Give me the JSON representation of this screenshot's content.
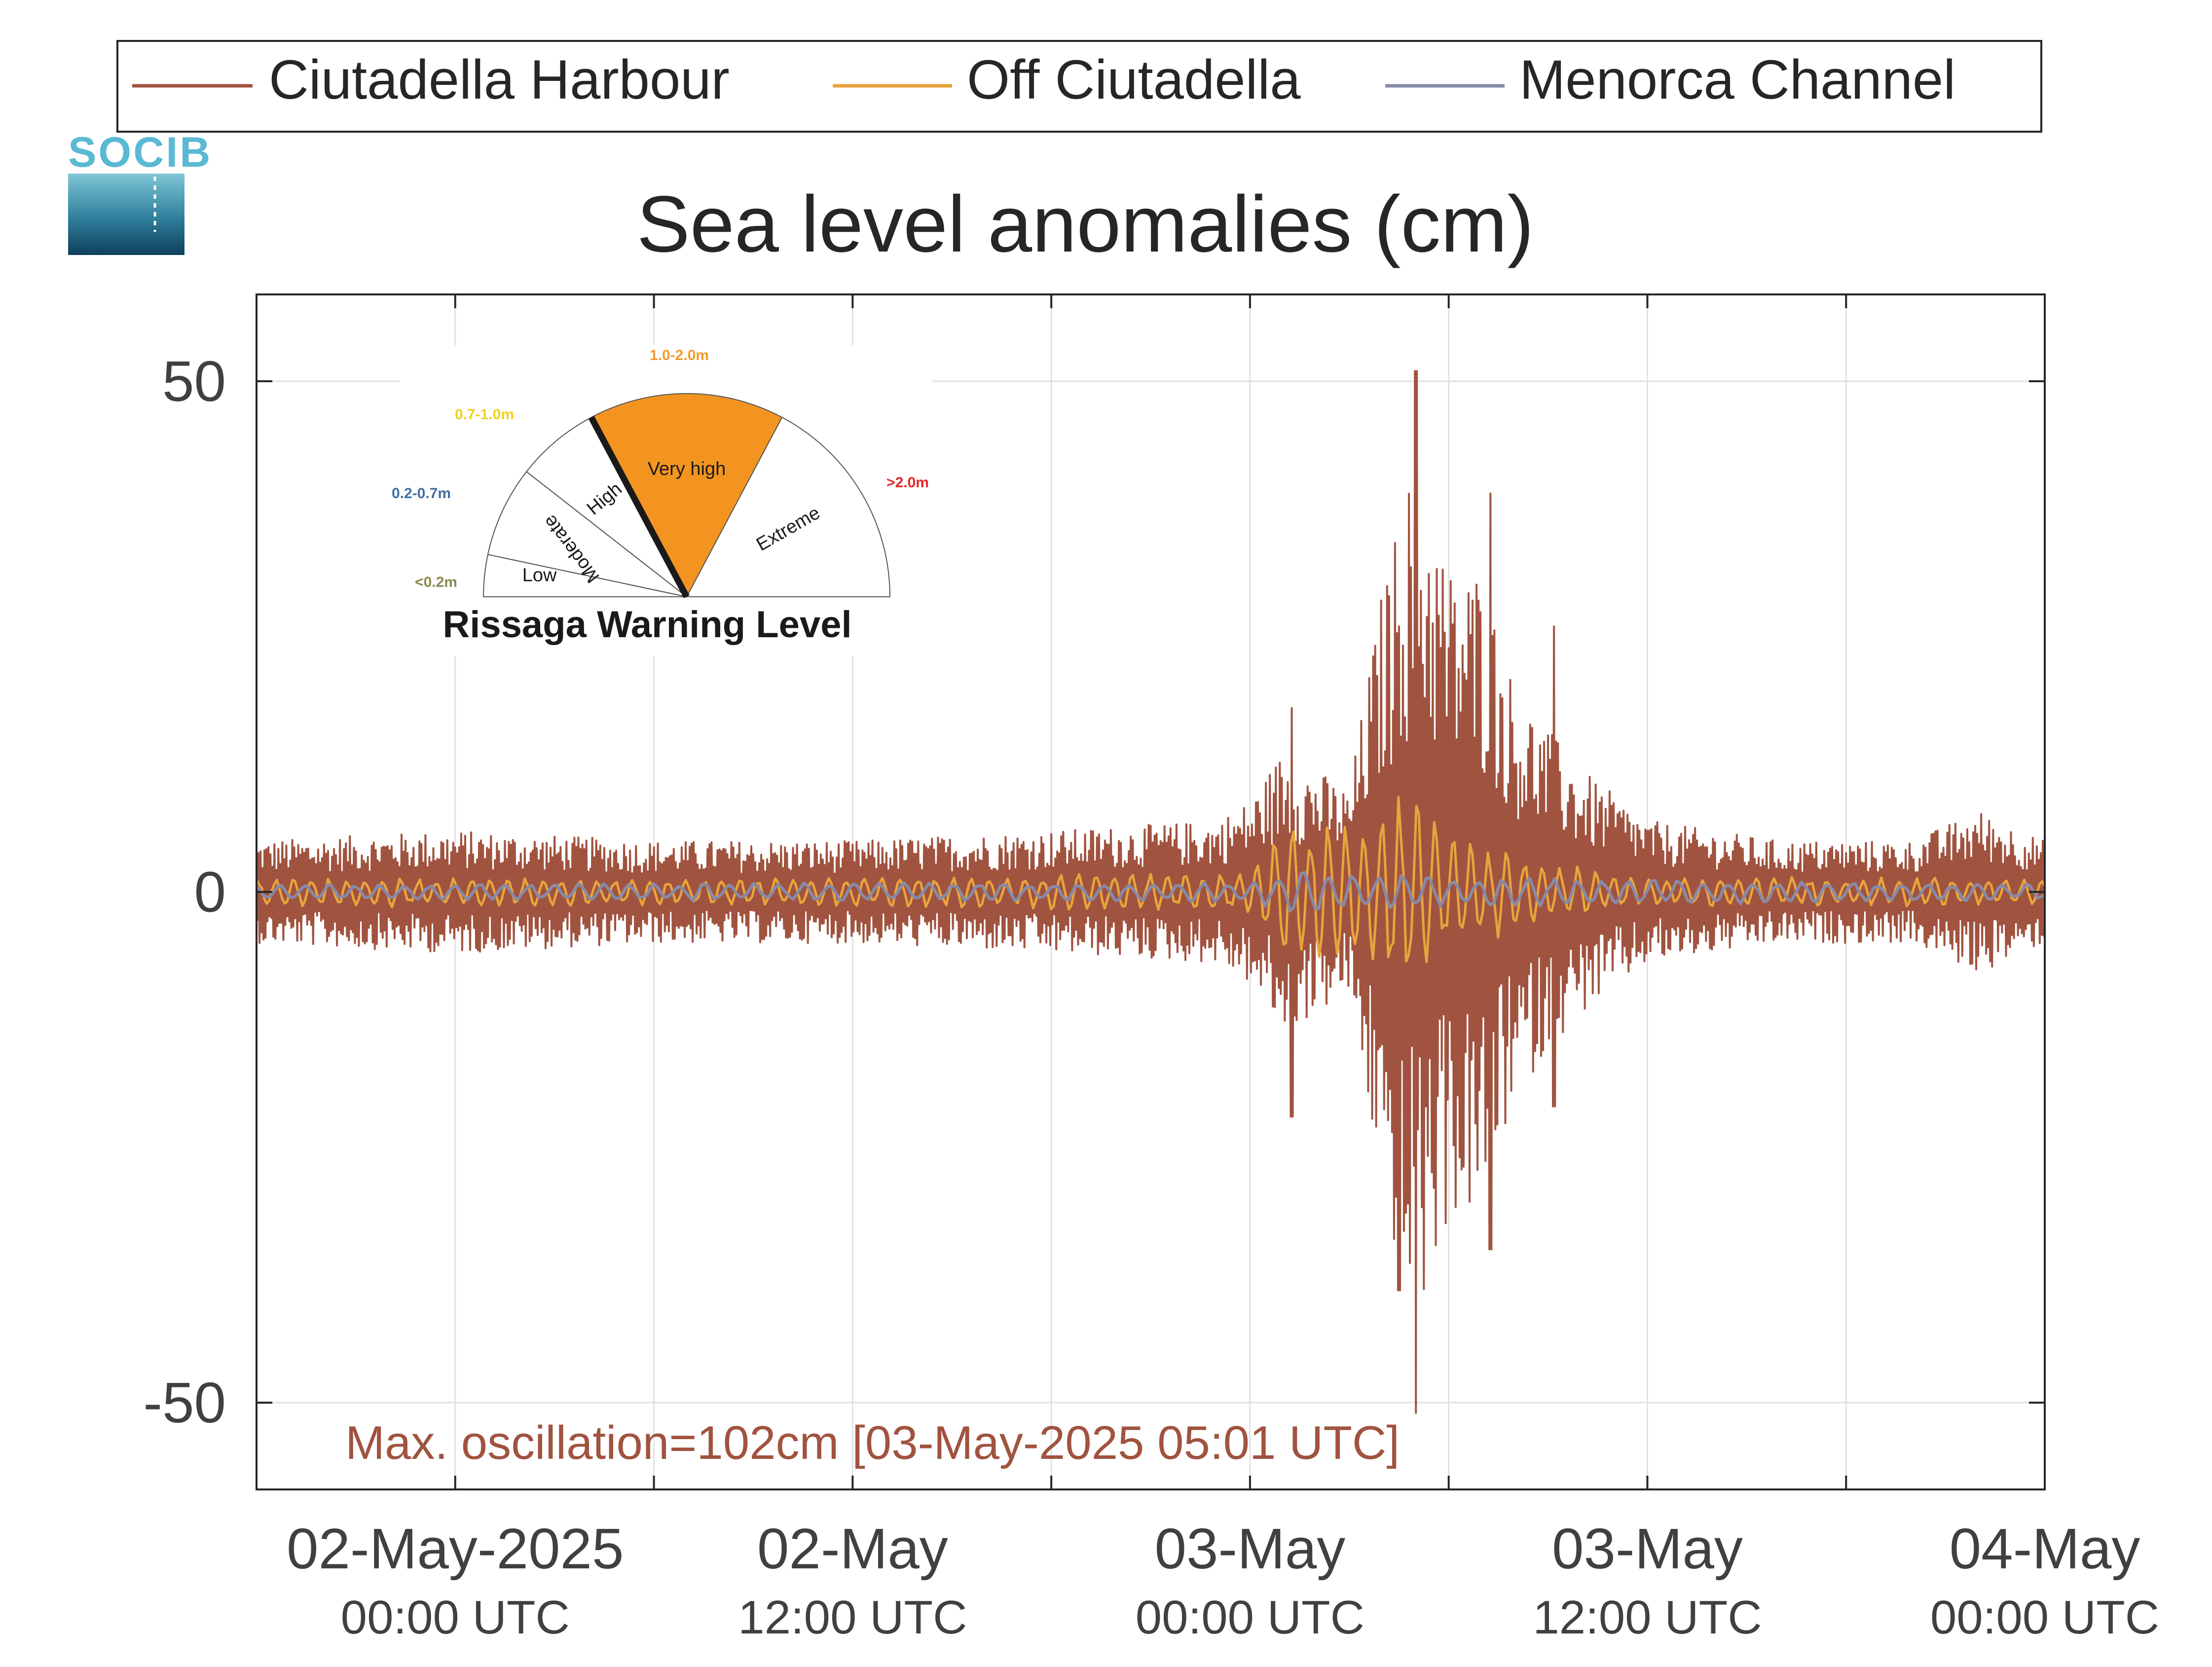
{
  "chart_data": {
    "type": "line",
    "title": "Sea level anomalies (cm)",
    "xlabel": "",
    "ylabel": "",
    "ylim": [
      -58.5,
      58.5
    ],
    "yticks": [
      -50,
      0,
      50
    ],
    "ytick_labels": [
      "-50",
      "0",
      "50"
    ],
    "xlim": [
      "2025-05-01T18:00",
      "2025-05-04T00:00"
    ],
    "xticks": [
      {
        "at": "2025-05-02T00:00",
        "line1": "02-May-2025",
        "line2": "00:00 UTC"
      },
      {
        "at": "2025-05-02T12:00",
        "line1": "02-May",
        "line2": "12:00 UTC"
      },
      {
        "at": "2025-05-03T00:00",
        "line1": "03-May",
        "line2": "00:00 UTC"
      },
      {
        "at": "2025-05-03T12:00",
        "line1": "03-May",
        "line2": "12:00 UTC"
      },
      {
        "at": "2025-05-04T00:00",
        "line1": "04-May",
        "line2": "00:00 UTC"
      }
    ],
    "grid": true,
    "legend_position": "top",
    "annotation": "Max. oscillation=102cm [03-May-2025 05:01 UTC]",
    "series": [
      {
        "name": "Ciutadella Harbour",
        "color": "#a0533f",
        "envelope": {
          "t": [
            "2025-05-01T18:00",
            "2025-05-02T00:00",
            "2025-05-02T06:00",
            "2025-05-02T12:00",
            "2025-05-02T18:00",
            "2025-05-02T23:00",
            "2025-05-03T00:00",
            "2025-05-03T01:00",
            "2025-05-03T02:00",
            "2025-05-03T03:00",
            "2025-05-03T04:00",
            "2025-05-03T05:00",
            "2025-05-03T06:00",
            "2025-05-03T07:00",
            "2025-05-03T08:00",
            "2025-05-03T09:00",
            "2025-05-03T10:00",
            "2025-05-03T12:00",
            "2025-05-03T16:00",
            "2025-05-03T20:00",
            "2025-05-03T22:00",
            "2025-05-04T00:00"
          ],
          "amplitude": [
            5,
            6,
            5,
            5,
            6,
            7,
            9,
            14,
            12,
            10,
            30,
            44,
            32,
            32,
            20,
            16,
            12,
            7,
            5,
            5,
            8,
            5
          ]
        },
        "spikes": [
          {
            "t": "2025-05-03T01:15",
            "min": -22,
            "max": 18
          },
          {
            "t": "2025-05-03T04:30",
            "min": -39,
            "max": 26
          },
          {
            "t": "2025-05-03T05:01",
            "min": -51,
            "max": 51
          },
          {
            "t": "2025-05-03T07:15",
            "min": -35,
            "max": 39
          },
          {
            "t": "2025-05-03T09:10",
            "min": -21,
            "max": 26
          }
        ]
      },
      {
        "name": "Off Ciutadella",
        "color": "#e8a33c",
        "envelope": {
          "t": [
            "2025-05-01T18:00",
            "2025-05-02T12:00",
            "2025-05-03T00:00",
            "2025-05-03T01:00",
            "2025-05-03T03:00",
            "2025-05-03T04:30",
            "2025-05-03T06:00",
            "2025-05-03T08:00",
            "2025-05-03T10:00",
            "2025-05-03T12:00",
            "2025-05-04T00:00"
          ],
          "amplitude": [
            1.5,
            1.5,
            2,
            8,
            7,
            11,
            6,
            4,
            2.5,
            1.5,
            1.5
          ]
        }
      },
      {
        "name": "Menorca Channel",
        "color": "#878aa6",
        "envelope": {
          "t": [
            "2025-05-01T18:00",
            "2025-05-03T00:00",
            "2025-05-03T01:30",
            "2025-05-03T04:00",
            "2025-05-03T08:00",
            "2025-05-04T00:00"
          ],
          "amplitude": [
            0.8,
            1.0,
            2.5,
            2.0,
            1.5,
            0.8
          ]
        }
      }
    ]
  },
  "logo": {
    "text": "SOCIB"
  },
  "inset": {
    "title": "Rissaga Warning Level",
    "needle_level": "High",
    "levels": [
      {
        "name": "Low",
        "range": "<0.2m",
        "range_color": "#8a8a4e",
        "fill": "#ffffff"
      },
      {
        "name": "Moderate",
        "range": "0.2-0.7m",
        "range_color": "#3f6fa3",
        "fill": "#ffffff"
      },
      {
        "name": "High",
        "range": "0.7-1.0m",
        "range_color": "#f2d024",
        "fill": "#ffffff"
      },
      {
        "name": "Very high",
        "range": "1.0-2.0m",
        "range_color": "#f39a2d",
        "fill": "#f39420"
      },
      {
        "name": "Extreme",
        "range": ">2.0m",
        "range_color": "#e02828",
        "fill": "#ffffff"
      }
    ]
  }
}
